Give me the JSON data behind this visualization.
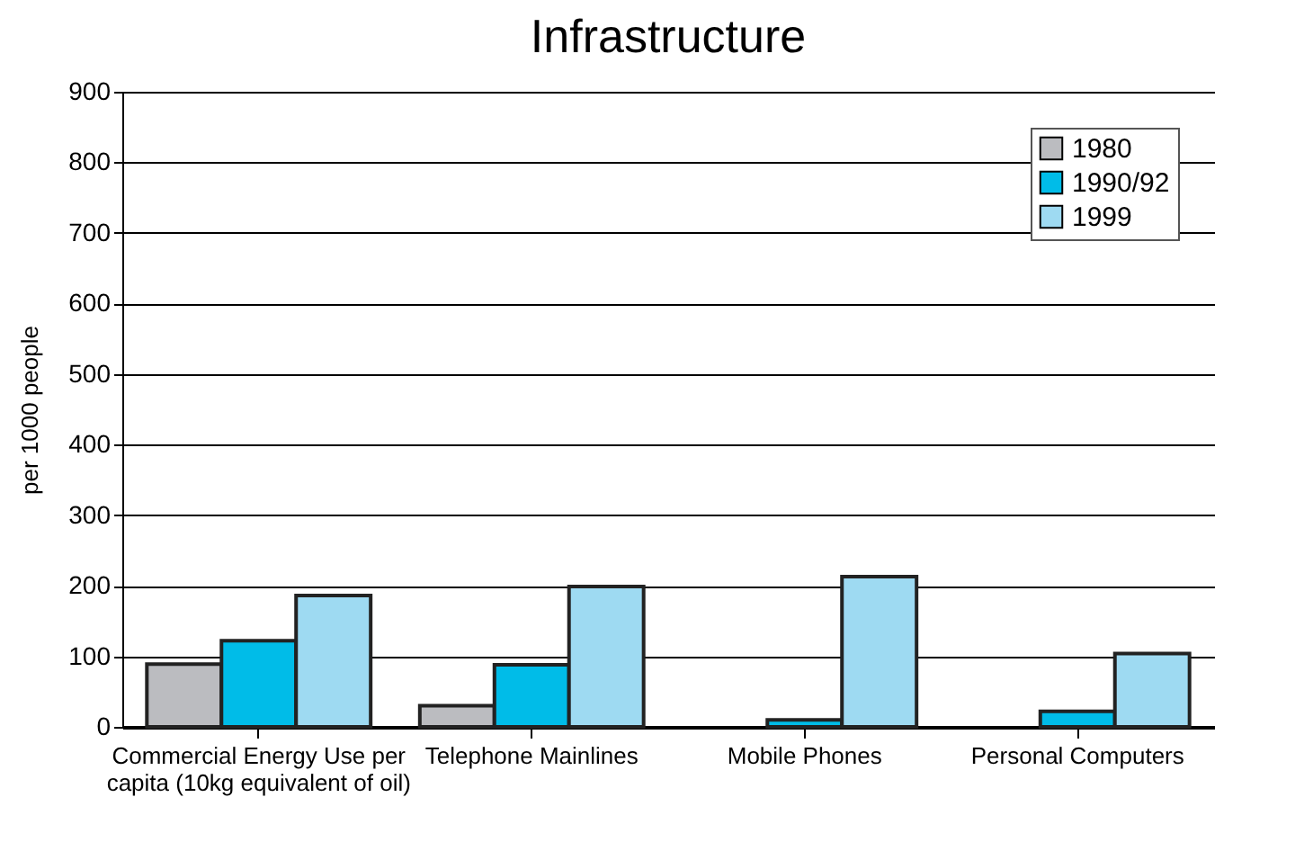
{
  "chart_data": {
    "type": "bar",
    "title": "Infrastructure",
    "ylabel": "per 1000 people",
    "categories": [
      "Commercial Energy Use per\ncapita (10kg equivalent of oil)",
      "Telephone Mainlines",
      "Mobile Phones",
      "Personal Computers"
    ],
    "series": [
      {
        "name": "1980",
        "color": "#bbbcc0",
        "values": [
          89,
          30,
          null,
          null
        ]
      },
      {
        "name": "1990/92",
        "color": "#00bce8",
        "values": [
          122,
          88,
          10,
          22
        ]
      },
      {
        "name": "1999",
        "color": "#9edaf2",
        "values": [
          186,
          199,
          213,
          104
        ]
      }
    ],
    "ylim": [
      0,
      900
    ],
    "yticks": [
      0,
      100,
      200,
      300,
      400,
      500,
      600,
      700,
      800,
      900
    ],
    "grid": "y",
    "legend": "top right"
  }
}
